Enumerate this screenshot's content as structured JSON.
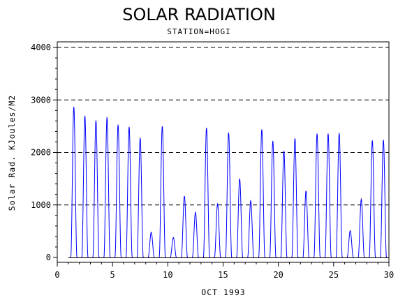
{
  "chart_data": {
    "type": "line",
    "title": "SOLAR RADIATION",
    "subtitle": "STATION=HOGI",
    "xlabel": "OCT 1993",
    "ylabel": "Solar Rad. KJoules/M2",
    "xlim": [
      0,
      30
    ],
    "ylim": [
      0,
      4000
    ],
    "x_ticks": [
      0,
      5,
      10,
      15,
      20,
      25,
      30
    ],
    "y_ticks": [
      0,
      1000,
      2000,
      3000,
      4000
    ],
    "grid": "dashed horizontal lines at y ticks",
    "series": [
      {
        "color": "#0000ff",
        "daily_peaks": [
          {
            "day": 1.5,
            "peak": 2870
          },
          {
            "day": 2.5,
            "peak": 2700
          },
          {
            "day": 3.5,
            "peak": 2610
          },
          {
            "day": 4.5,
            "peak": 2670
          },
          {
            "day": 5.5,
            "peak": 2530
          },
          {
            "day": 6.5,
            "peak": 2490
          },
          {
            "day": 7.5,
            "peak": 2280
          },
          {
            "day": 8.5,
            "peak": 480
          },
          {
            "day": 9.5,
            "peak": 2500
          },
          {
            "day": 10.5,
            "peak": 380
          },
          {
            "day": 11.5,
            "peak": 1170
          },
          {
            "day": 12.5,
            "peak": 860
          },
          {
            "day": 13.5,
            "peak": 2470
          },
          {
            "day": 14.5,
            "peak": 1020
          },
          {
            "day": 15.5,
            "peak": 2380
          },
          {
            "day": 16.5,
            "peak": 1500
          },
          {
            "day": 17.5,
            "peak": 1080
          },
          {
            "day": 18.5,
            "peak": 2440
          },
          {
            "day": 19.5,
            "peak": 2220
          },
          {
            "day": 20.5,
            "peak": 2030
          },
          {
            "day": 21.5,
            "peak": 2270
          },
          {
            "day": 22.5,
            "peak": 1270
          },
          {
            "day": 23.5,
            "peak": 2360
          },
          {
            "day": 24.5,
            "peak": 2360
          },
          {
            "day": 25.5,
            "peak": 2370
          },
          {
            "day": 26.5,
            "peak": 510
          },
          {
            "day": 27.5,
            "peak": 1110
          },
          {
            "day": 28.5,
            "peak": 2230
          },
          {
            "day": 29.5,
            "peak": 2240
          }
        ]
      }
    ]
  }
}
